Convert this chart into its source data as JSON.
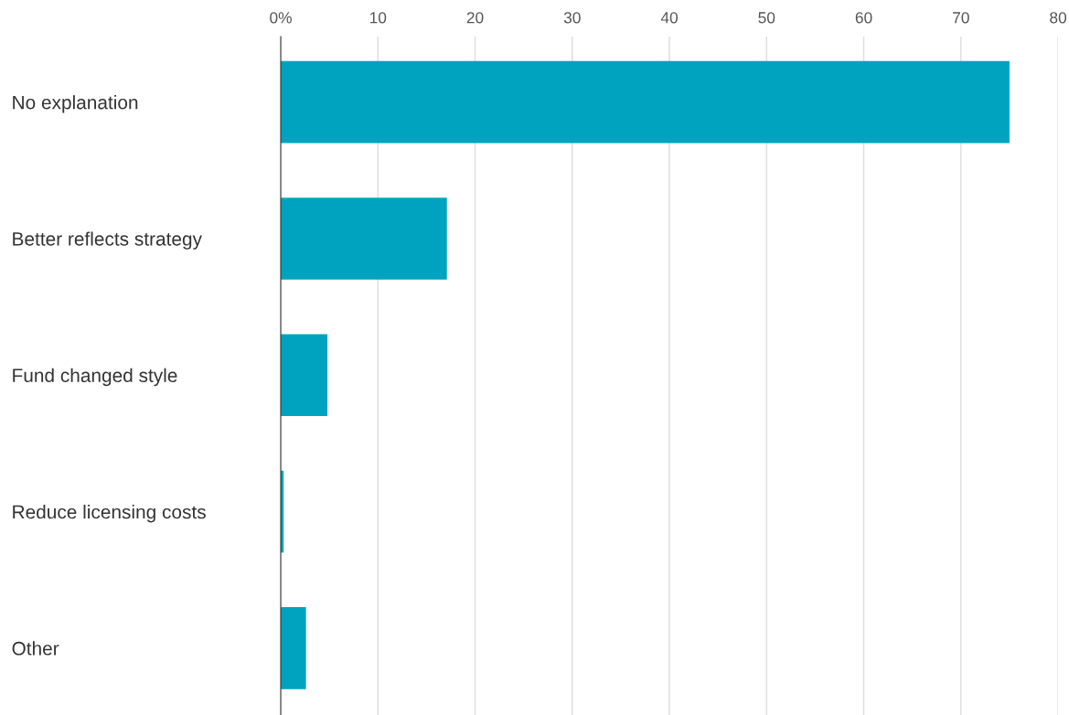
{
  "chart_data": {
    "type": "bar",
    "orientation": "horizontal",
    "categories": [
      "No explanation",
      "Better reflects strategy",
      "Fund changed style",
      "Reduce licensing costs",
      "Other"
    ],
    "values": [
      75.0,
      17.1,
      4.8,
      0.3,
      2.6
    ],
    "color": "#00a3bf",
    "xlim": [
      0,
      80
    ],
    "xticks": [
      {
        "value": 0,
        "label": "0%"
      },
      10,
      20,
      30,
      40,
      50,
      60,
      70,
      80
    ],
    "grid": "x"
  }
}
